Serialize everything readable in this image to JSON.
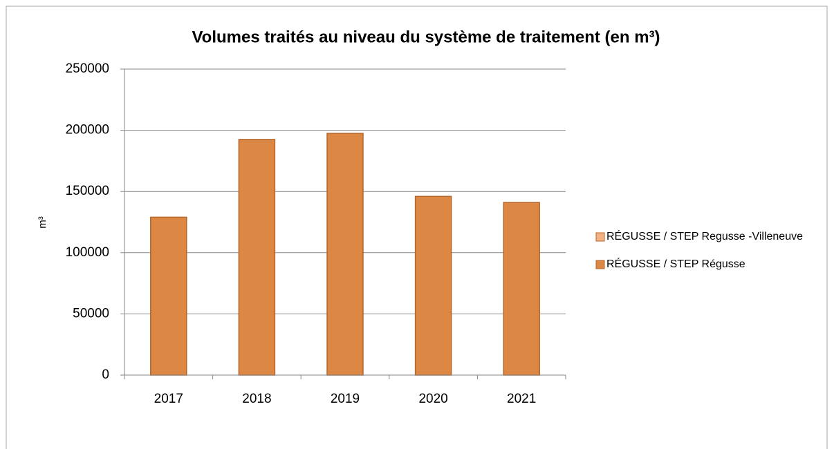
{
  "chart_data": {
    "type": "stacked-bar",
    "title": "Volumes traités au niveau du système de traitement (en m³)",
    "y_label": "m³",
    "categories": [
      "2017",
      "2018",
      "2019",
      "2020",
      "2021"
    ],
    "series": [
      {
        "name": "RÉGUSSE / STEP Régusse",
        "color": "#dc8744",
        "values": [
          129000,
          192500,
          197500,
          146000,
          141000
        ]
      },
      {
        "name": "RÉGUSSE / STEP Regusse -Villeneuve",
        "color": "#f4b183",
        "values": [
          0,
          0,
          0,
          0,
          0
        ]
      }
    ],
    "ylim": [
      0,
      250000
    ],
    "yticks": [
      0,
      50000,
      100000,
      150000,
      200000,
      250000
    ],
    "grid": true,
    "legend": "right"
  }
}
